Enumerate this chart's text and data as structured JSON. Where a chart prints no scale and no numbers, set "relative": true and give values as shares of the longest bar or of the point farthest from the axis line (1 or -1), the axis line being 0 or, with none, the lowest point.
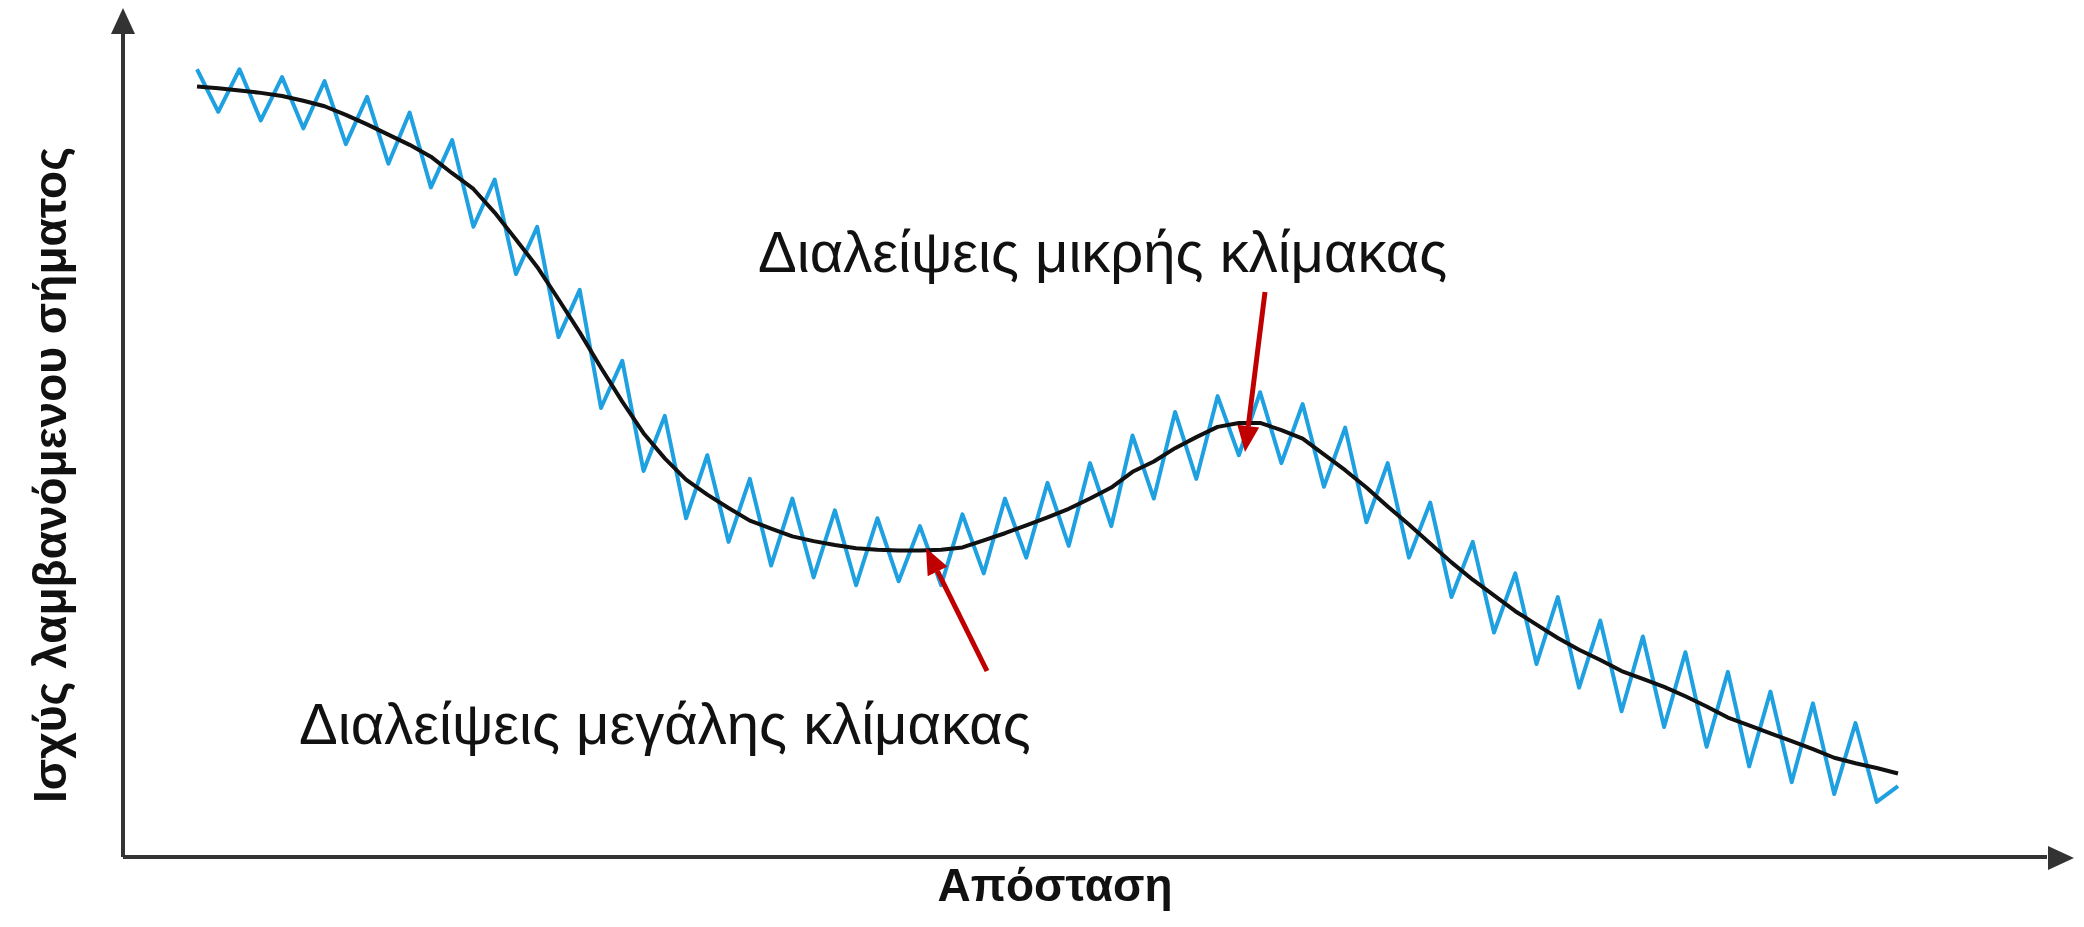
{
  "chart_data": {
    "type": "line",
    "relative": true,
    "xlabel": "Απόσταση",
    "ylabel": "Ισχύς λαμβανόμενου σήματος",
    "marker": "none",
    "line_style": "solid",
    "annotations": [
      "Διαλείψεις μικρής κλίμακας",
      "Διαλείψεις μεγάλης κλίμακας"
    ],
    "categories": [
      null,
      null,
      null,
      null,
      null,
      null,
      null,
      null,
      null,
      null,
      null,
      null,
      null,
      null,
      null,
      null,
      null,
      null,
      null,
      null,
      null,
      null,
      null,
      null,
      null,
      null,
      null,
      null,
      null,
      null,
      null,
      null,
      null,
      null,
      null,
      null,
      null,
      null,
      null,
      null,
      null,
      null,
      null,
      null,
      null,
      null,
      null,
      null,
      null,
      null,
      null,
      null,
      null,
      null,
      null,
      null,
      null,
      null,
      null,
      null,
      null,
      null,
      null,
      null,
      null,
      null,
      null,
      null,
      null,
      null,
      null,
      null,
      null,
      null,
      null,
      null,
      null,
      null,
      null,
      null,
      null
    ],
    "series": [
      {
        "color": "#1fa0e0",
        "values": [
          1.0,
          0.946,
          1.0,
          0.935,
          0.99,
          0.925,
          0.985,
          0.905,
          0.965,
          0.88,
          0.945,
          0.85,
          0.91,
          0.8,
          0.86,
          0.74,
          0.8,
          0.66,
          0.72,
          0.57,
          0.63,
          0.49,
          0.56,
          0.43,
          0.51,
          0.4,
          0.48,
          0.37,
          0.455,
          0.355,
          0.44,
          0.345,
          0.43,
          0.35,
          0.42,
          0.345,
          0.435,
          0.36,
          0.455,
          0.38,
          0.475,
          0.395,
          0.5,
          0.42,
          0.535,
          0.455,
          0.565,
          0.48,
          0.585,
          0.51,
          0.59,
          0.5,
          0.575,
          0.47,
          0.545,
          0.425,
          0.5,
          0.38,
          0.45,
          0.33,
          0.4,
          0.285,
          0.36,
          0.245,
          0.33,
          0.215,
          0.3,
          0.185,
          0.28,
          0.165,
          0.26,
          0.14,
          0.235,
          0.115,
          0.21,
          0.095,
          0.195,
          0.08,
          0.17,
          0.07,
          0.09
        ]
      },
      {
        "color": "#111111",
        "values": [
          0.978,
          0.976,
          0.973,
          0.97,
          0.966,
          0.96,
          0.953,
          0.942,
          0.93,
          0.917,
          0.904,
          0.889,
          0.868,
          0.848,
          0.818,
          0.784,
          0.749,
          0.708,
          0.666,
          0.621,
          0.578,
          0.538,
          0.506,
          0.479,
          0.46,
          0.443,
          0.427,
          0.417,
          0.407,
          0.401,
          0.396,
          0.392,
          0.39,
          0.389,
          0.389,
          0.39,
          0.393,
          0.402,
          0.411,
          0.421,
          0.431,
          0.442,
          0.455,
          0.469,
          0.489,
          0.502,
          0.519,
          0.533,
          0.546,
          0.551,
          0.551,
          0.542,
          0.531,
          0.511,
          0.491,
          0.469,
          0.445,
          0.422,
          0.398,
          0.374,
          0.352,
          0.332,
          0.312,
          0.295,
          0.278,
          0.263,
          0.25,
          0.236,
          0.226,
          0.216,
          0.204,
          0.191,
          0.177,
          0.167,
          0.157,
          0.147,
          0.137,
          0.126,
          0.119,
          0.113,
          0.106
        ]
      }
    ]
  }
}
